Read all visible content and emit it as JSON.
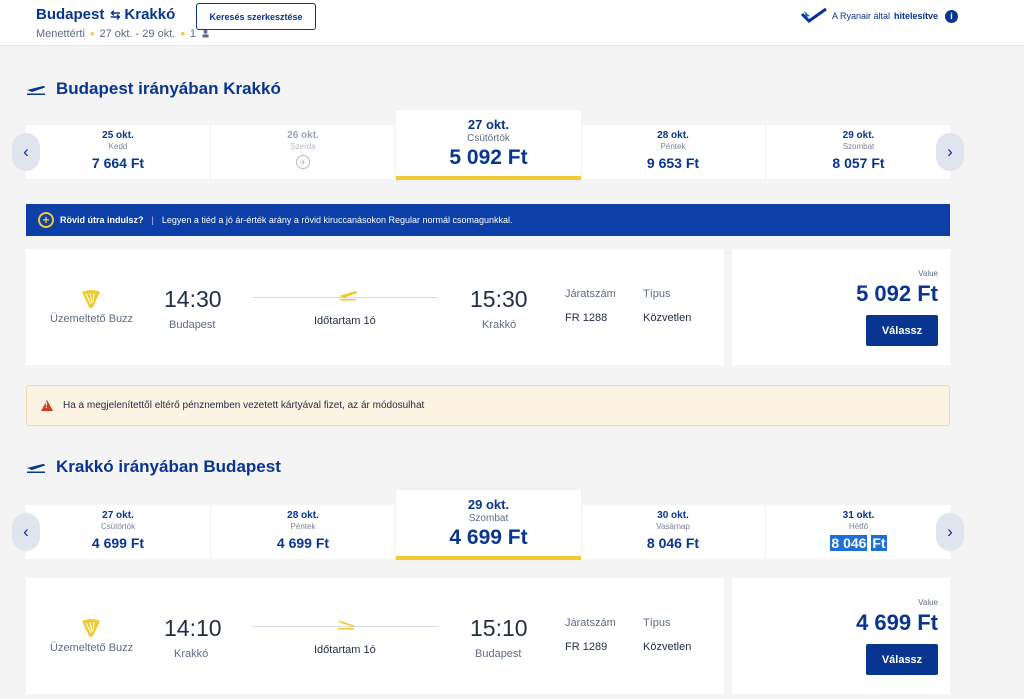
{
  "header": {
    "origin": "Budapest",
    "destination": "Krakkó",
    "arrows_glyph": "⇆",
    "trip_type": "Menettérti",
    "dates": "27 okt. - 29 okt.",
    "passengers": "1",
    "edit_button": "Keresés szerkesztése",
    "verified_prefix": "A Ryanair által",
    "verified_bold": "hitelesítve",
    "info_glyph": "i"
  },
  "outbound": {
    "title": "Budapest irányában Krakkó",
    "days": [
      {
        "date": "25 okt.",
        "weekday": "Kedd",
        "price": "7 664 Ft"
      },
      {
        "date": "26 okt.",
        "weekday": "Szerda",
        "price": ""
      },
      {
        "date": "27 okt.",
        "weekday": "Csütörtök",
        "price": "5 092 Ft"
      },
      {
        "date": "28 okt.",
        "weekday": "Péntek",
        "price": "9 653 Ft"
      },
      {
        "date": "29 okt.",
        "weekday": "Szombat",
        "price": "8 057 Ft"
      }
    ],
    "flight": {
      "operator": "Üzemeltető Buzz",
      "dep_time": "14:30",
      "dep_city": "Budapest",
      "duration": "Időtartam 1ó",
      "arr_time": "15:30",
      "arr_city": "Krakkó",
      "flight_no_label": "Járatszám",
      "flight_no": "FR 1288",
      "type_label": "Típus",
      "type": "Közvetlen",
      "fare_type": "Value",
      "price": "5 092 Ft",
      "select": "Válassz"
    }
  },
  "promo": {
    "bold": "Rövid útra indulsz?",
    "separator": "|",
    "text": "Legyen a tiéd a jó ár-érték arány a rövid kiruccanásokon Regular normál csomagunkkal."
  },
  "warning": {
    "text": "Ha a megjelenítettől eltérő pénznemben vezetett kártyával fizet, az ár módosulhat"
  },
  "inbound": {
    "title": "Krakkó irányában Budapest",
    "days": [
      {
        "date": "27 okt.",
        "weekday": "Csütörtök",
        "price": "4 699 Ft"
      },
      {
        "date": "28 okt.",
        "weekday": "Péntek",
        "price": "4 699 Ft"
      },
      {
        "date": "29 okt.",
        "weekday": "Szombat",
        "price": "4 699 Ft"
      },
      {
        "date": "30 okt.",
        "weekday": "Vasárnap",
        "price": "8 046 Ft"
      },
      {
        "date": "31 okt.",
        "weekday": "Hétfő",
        "price_num": "8 046",
        "price_cur": "Ft"
      }
    ],
    "flight": {
      "operator": "Üzemeltető Buzz",
      "dep_time": "14:10",
      "dep_city": "Krakkó",
      "duration": "Időtartam 1ó",
      "arr_time": "15:10",
      "arr_city": "Budapest",
      "flight_no_label": "Járatszám",
      "flight_no": "FR 1289",
      "type_label": "Típus",
      "type": "Közvetlen",
      "fare_type": "Value",
      "price": "4 699 Ft",
      "select": "Válassz"
    }
  },
  "colors": {
    "brand": "#073590",
    "accent": "#f1c933",
    "promo_bg": "#0c3fa8",
    "warning_bg": "#fdf3e3"
  }
}
